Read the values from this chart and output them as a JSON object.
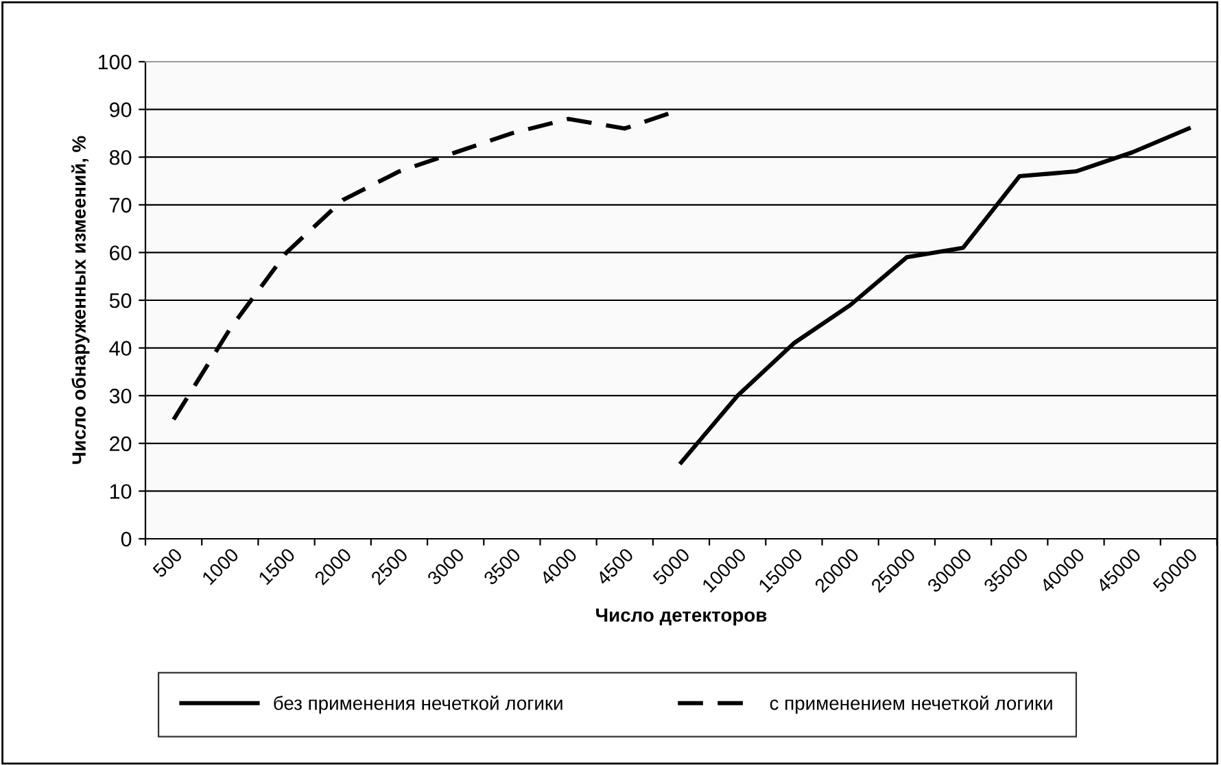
{
  "chart_data": {
    "type": "line",
    "xlabel": "Число детекторов",
    "ylabel": "Число обнаруженных измеений, %",
    "categories": [
      "500",
      "1000",
      "1500",
      "2000",
      "2500",
      "3000",
      "3500",
      "4000",
      "4500",
      "5000",
      "10000",
      "15000",
      "20000",
      "25000",
      "30000",
      "35000",
      "40000",
      "45000",
      "50000"
    ],
    "series": [
      {
        "name": "без применения нечеткой логики",
        "color": "#000000",
        "line_style": "solid",
        "values": [
          null,
          null,
          null,
          null,
          null,
          null,
          null,
          null,
          null,
          16,
          30,
          41,
          49,
          59,
          61,
          76,
          77,
          81,
          86
        ]
      },
      {
        "name": "с применением нечеткой логики",
        "color": "#000000",
        "line_style": "dashed",
        "values": [
          25,
          44,
          60,
          71,
          77,
          81,
          85,
          88,
          86,
          90,
          null,
          null,
          null,
          null,
          null,
          null,
          null,
          null,
          null
        ]
      }
    ],
    "ylim": [
      0,
      100
    ],
    "yticks": [
      0,
      10,
      20,
      30,
      40,
      50,
      60,
      70,
      80,
      90,
      100
    ],
    "grid": "y",
    "legend": "bottom",
    "marker": "none"
  }
}
